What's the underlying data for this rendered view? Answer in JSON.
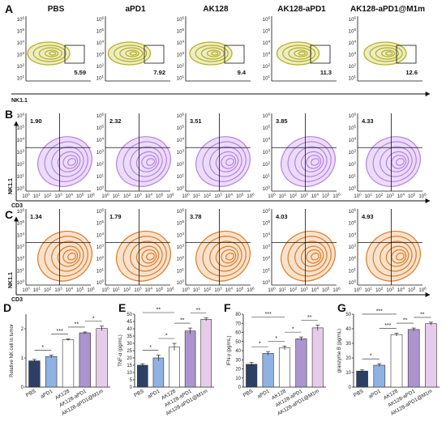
{
  "panel_labels": [
    "A",
    "B",
    "C",
    "D",
    "E",
    "F",
    "G"
  ],
  "groups": [
    "PBS",
    "aPD1",
    "AK128",
    "AK128-aPD1",
    "AK128-aPD1@M1m"
  ],
  "palette": {
    "row_a": "#b7b21f",
    "row_b": "#b781e6",
    "row_c": "#e07a22",
    "bars": [
      "#2c4066",
      "#8fb2e3",
      "#ffffff",
      "#ab95cf",
      "#e7cbea"
    ]
  },
  "flow": {
    "tick_labels": [
      "10^0",
      "10^1",
      "10^2",
      "10^3",
      "10^4",
      "10^5",
      "10^6"
    ],
    "row_a": {
      "axis_label": "NK1.1",
      "gate": "single",
      "values": [
        "5.59",
        "7.92",
        "9.4",
        "11.3",
        "12.6"
      ]
    },
    "row_b": {
      "axis_label_y": "NK1.1",
      "axis_label_x": "CD3",
      "gate": "quadrant",
      "values": [
        "1.90",
        "2.32",
        "3.51",
        "3.85",
        "4.33"
      ]
    },
    "row_c": {
      "axis_label_y": "NK1.1",
      "axis_label_x": "CD3",
      "gate": "quadrant",
      "values": [
        "1.34",
        "1.79",
        "3.78",
        "4.03",
        "4.93"
      ]
    }
  },
  "chart_data": [
    {
      "panel": "D",
      "type": "bar",
      "categories": [
        "PBS",
        "aPD1",
        "AK128",
        "AK128-aPD1",
        "AK128-aPD1@M1m"
      ],
      "values": [
        0.9,
        1.05,
        1.62,
        1.86,
        2.01
      ],
      "errors": [
        0.05,
        0.05,
        0.03,
        0.03,
        0.08
      ],
      "ylabel": "Relative NK cell in tumor",
      "ylim": [
        0,
        2.5
      ],
      "yticks": [
        0,
        1,
        2
      ],
      "significance": [
        {
          "a": 0,
          "b": 1,
          "label": "*"
        },
        {
          "a": 1,
          "b": 2,
          "label": "***"
        },
        {
          "a": 2,
          "b": 3,
          "label": "**"
        },
        {
          "a": 3,
          "b": 4,
          "label": "*"
        }
      ]
    },
    {
      "panel": "E",
      "type": "bar",
      "categories": [
        "PBS",
        "aPD1",
        "AK128",
        "AK128-aPD1",
        "AK128-aPD1@M1m"
      ],
      "values": [
        15,
        20,
        27.5,
        38.5,
        46.5
      ],
      "errors": [
        1,
        2,
        2.5,
        2,
        1
      ],
      "ylabel": "TNF-α (pg/mL)",
      "ylim": [
        0,
        50
      ],
      "yticks": [
        0,
        5,
        10,
        15,
        20,
        25,
        30,
        35,
        40,
        45,
        50
      ],
      "significance": [
        {
          "a": 0,
          "b": 1,
          "label": "*"
        },
        {
          "a": 1,
          "b": 2,
          "label": "*"
        },
        {
          "a": 2,
          "b": 3,
          "label": "**"
        },
        {
          "a": 3,
          "b": 4,
          "label": "**"
        },
        {
          "a": 0,
          "b": 2,
          "label": "**"
        }
      ]
    },
    {
      "panel": "F",
      "type": "bar",
      "categories": [
        "PBS",
        "aPD1",
        "AK128",
        "AK128-aPD1",
        "AK128-aPD1@M1m"
      ],
      "values": [
        25,
        37,
        43,
        53,
        65
      ],
      "errors": [
        2,
        2,
        2,
        2,
        3
      ],
      "ylabel": "IFN-γ (pg/mL)",
      "ylim": [
        0,
        80
      ],
      "yticks": [
        0,
        10,
        20,
        30,
        40,
        50,
        60,
        70,
        80
      ],
      "significance": [
        {
          "a": 0,
          "b": 1,
          "label": "*"
        },
        {
          "a": 1,
          "b": 2,
          "label": "*"
        },
        {
          "a": 2,
          "b": 3,
          "label": "*"
        },
        {
          "a": 3,
          "b": 4,
          "label": "**"
        },
        {
          "a": 0,
          "b": 2,
          "label": "***"
        }
      ]
    },
    {
      "panel": "G",
      "type": "bar",
      "categories": [
        "PBS",
        "aPD1",
        "AK128",
        "AK128-aPD1",
        "AK128-aPD1@M1m"
      ],
      "values": [
        11,
        15,
        36,
        39.5,
        43.5
      ],
      "errors": [
        0.8,
        1,
        1,
        1,
        1
      ],
      "ylabel": "granzyme B (pg/mL)",
      "ylim": [
        0,
        50
      ],
      "yticks": [
        0,
        10,
        20,
        30,
        40,
        50
      ],
      "significance": [
        {
          "a": 0,
          "b": 1,
          "label": "*"
        },
        {
          "a": 1,
          "b": 2,
          "label": "***"
        },
        {
          "a": 2,
          "b": 3,
          "label": "**"
        },
        {
          "a": 3,
          "b": 4,
          "label": "**"
        },
        {
          "a": 0,
          "b": 2,
          "label": "***"
        }
      ]
    }
  ]
}
